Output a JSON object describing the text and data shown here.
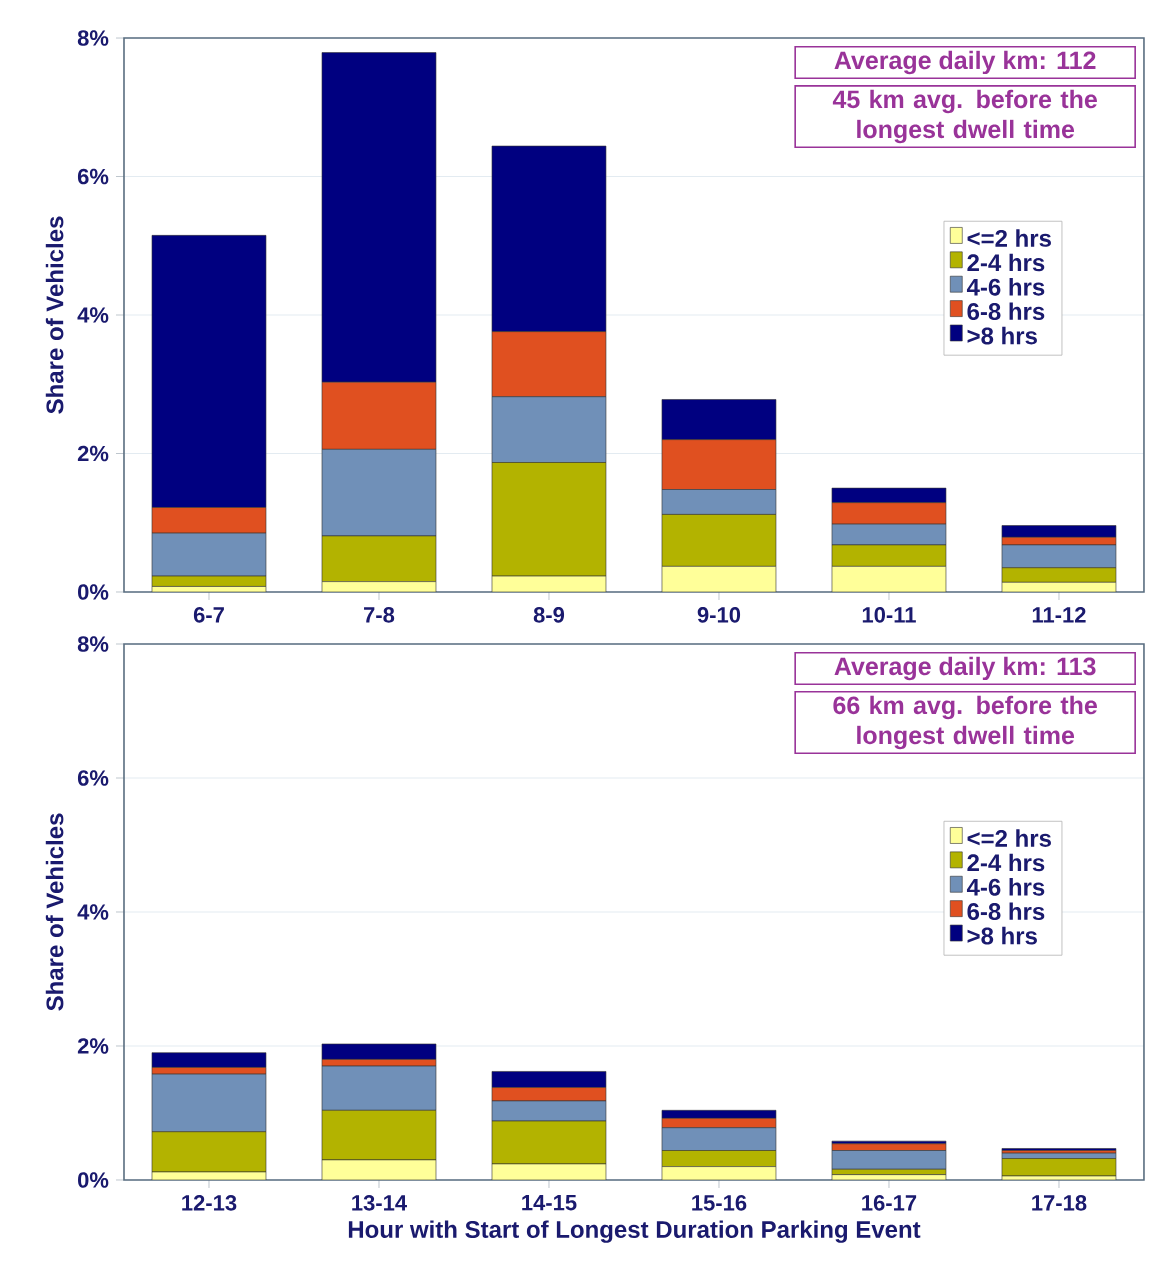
{
  "chart_data": [
    {
      "type": "bar",
      "stacked": true,
      "ylabel": "Share of Vehicles",
      "categories": [
        "6-7",
        "7-8",
        "8-9",
        "9-10",
        "10-11",
        "11-12"
      ],
      "series": [
        {
          "name": "<=2 hrs",
          "color": "#ffff99",
          "values": [
            0.08,
            0.15,
            0.23,
            0.37,
            0.37,
            0.14
          ]
        },
        {
          "name": "2-4 hrs",
          "color": "#b3b300",
          "values": [
            0.15,
            0.66,
            1.64,
            0.75,
            0.31,
            0.21
          ]
        },
        {
          "name": "4-6 hrs",
          "color": "#7090b8",
          "values": [
            0.62,
            1.25,
            0.95,
            0.36,
            0.3,
            0.33
          ]
        },
        {
          "name": "6-8 hrs",
          "color": "#e05020",
          "values": [
            0.37,
            0.97,
            0.94,
            0.72,
            0.31,
            0.11
          ]
        },
        {
          "name": ">8 hrs",
          "color": "#000080",
          "values": [
            3.93,
            4.76,
            2.68,
            0.58,
            0.21,
            0.17
          ]
        }
      ],
      "ylim": [
        0,
        8
      ],
      "yticks": [
        {
          "value": 0,
          "label": "0%"
        },
        {
          "value": 2,
          "label": "2%"
        },
        {
          "value": 4,
          "label": "4%"
        },
        {
          "value": 6,
          "label": "6%"
        },
        {
          "value": 8,
          "label": "8%"
        }
      ],
      "grid": "y",
      "legend": "right",
      "annotations": [
        "Average daily km: 112",
        "45 km avg. before the longest dwell time"
      ]
    },
    {
      "type": "bar",
      "stacked": true,
      "ylabel": "Share of Vehicles",
      "xlabel": "Hour with Start of Longest Duration Parking Event",
      "categories": [
        "12-13",
        "13-14",
        "14-15",
        "15-16",
        "16-17",
        "17-18"
      ],
      "series": [
        {
          "name": "<=2 hrs",
          "color": "#ffff99",
          "values": [
            0.12,
            0.3,
            0.24,
            0.2,
            0.08,
            0.06
          ]
        },
        {
          "name": "2-4 hrs",
          "color": "#b3b300",
          "values": [
            0.6,
            0.74,
            0.64,
            0.24,
            0.08,
            0.26
          ]
        },
        {
          "name": "4-6 hrs",
          "color": "#7090b8",
          "values": [
            0.86,
            0.66,
            0.3,
            0.34,
            0.28,
            0.08
          ]
        },
        {
          "name": "6-8 hrs",
          "color": "#e05020",
          "values": [
            0.1,
            0.1,
            0.2,
            0.14,
            0.1,
            0.04
          ]
        },
        {
          "name": ">8 hrs",
          "color": "#000080",
          "values": [
            0.22,
            0.23,
            0.24,
            0.12,
            0.04,
            0.03
          ]
        }
      ],
      "ylim": [
        0,
        8
      ],
      "yticks": [
        {
          "value": 0,
          "label": "0%"
        },
        {
          "value": 2,
          "label": "2%"
        },
        {
          "value": 4,
          "label": "4%"
        },
        {
          "value": 6,
          "label": "6%"
        },
        {
          "value": 8,
          "label": "8%"
        }
      ],
      "grid": "y",
      "legend": "right",
      "annotations": [
        "Average daily km: 113",
        "66 km avg. before the longest dwell time"
      ]
    }
  ]
}
